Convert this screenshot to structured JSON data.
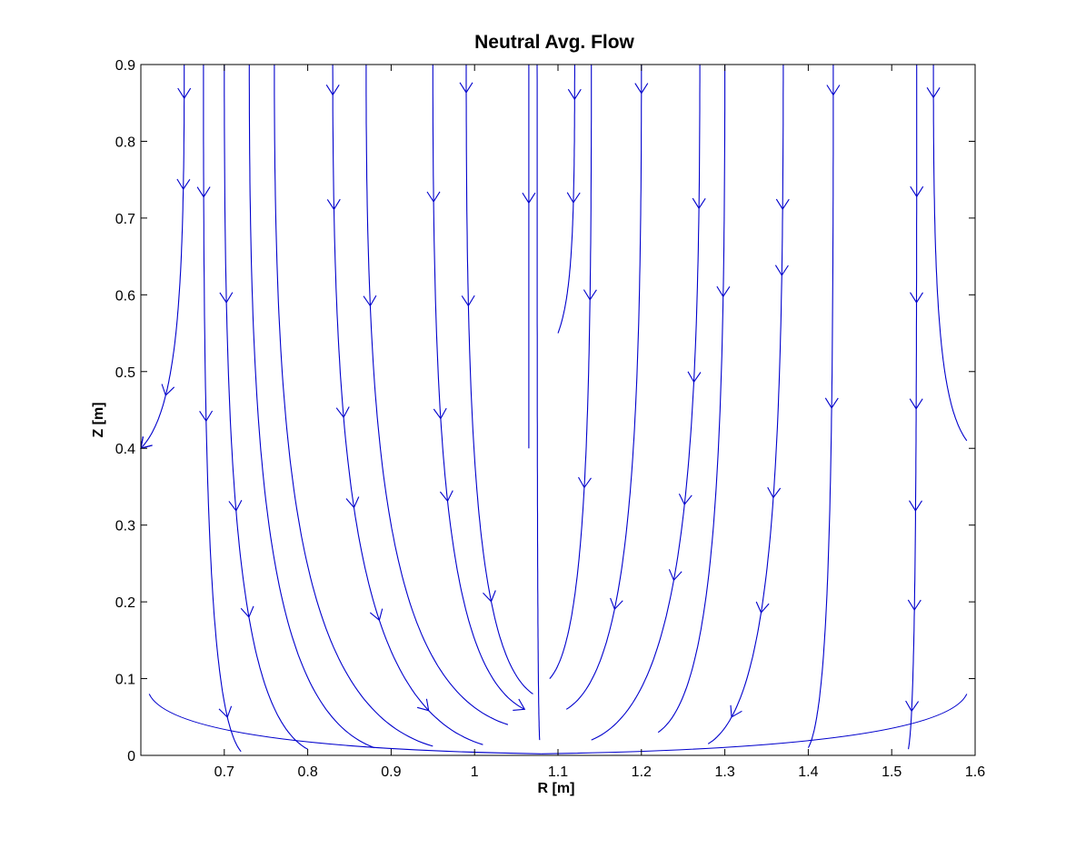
{
  "chart_data": {
    "type": "streamline",
    "title": "Neutral Avg. Flow",
    "xlabel": "R [m]",
    "ylabel": "Z [m]",
    "xlim": [
      0.6,
      1.6
    ],
    "ylim": [
      0,
      0.9
    ],
    "xticks": [
      0.7,
      0.8,
      0.9,
      1,
      1.1,
      1.2,
      1.3,
      1.4,
      1.5,
      1.6
    ],
    "xtick_labels": [
      "0.7",
      "0.8",
      "0.9",
      "1",
      "1.1",
      "1.2",
      "1.3",
      "1.4",
      "1.5",
      "1.6"
    ],
    "yticks": [
      0,
      0.1,
      0.2,
      0.3,
      0.4,
      0.5,
      0.6,
      0.7,
      0.8,
      0.9
    ],
    "ytick_labels": [
      "0",
      "0.1",
      "0.2",
      "0.3",
      "0.4",
      "0.5",
      "0.6",
      "0.7",
      "0.8",
      "0.9"
    ],
    "grid": false,
    "line_color": "#0000cc",
    "stagnation_point": [
      1.08,
      0.0
    ],
    "streamlines": [
      {
        "x0": 0.652,
        "arrow_z": [
          0.855,
          0.74,
          0.47,
          0.31,
          0.18,
          0.06
        ],
        "end": [
          0.6,
          0.4
        ]
      },
      {
        "x0": 0.675,
        "arrow_z": [
          0.72,
          0.44,
          0.05
        ],
        "end": [
          0.72,
          0.005
        ]
      },
      {
        "x0": 0.7,
        "arrow_z": [
          0.59,
          0.32,
          0.18
        ],
        "end": [
          0.8,
          0.008
        ]
      },
      {
        "x0": 0.73,
        "arrow_z": [],
        "end": [
          0.88,
          0.01
        ]
      },
      {
        "x0": 0.76,
        "arrow_z": [],
        "end": [
          0.95,
          0.012
        ]
      },
      {
        "x0": 0.83,
        "arrow_z": [
          0.855,
          0.72,
          0.44,
          0.32,
          0.18,
          0.06
        ],
        "end": [
          1.01,
          0.014
        ]
      },
      {
        "x0": 0.87,
        "arrow_z": [
          0.59
        ],
        "end": [
          1.04,
          0.04
        ]
      },
      {
        "x0": 0.95,
        "arrow_z": [
          0.72,
          0.44,
          0.33,
          0.05
        ],
        "end": [
          1.06,
          0.06
        ]
      },
      {
        "x0": 0.99,
        "arrow_z": [
          0.855,
          0.59,
          0.2
        ],
        "end": [
          1.07,
          0.08
        ]
      },
      {
        "x0": 1.065,
        "arrow_z": [
          0.72
        ],
        "end": [
          1.065,
          0.4
        ]
      },
      {
        "x0": 1.075,
        "arrow_z": [],
        "end": [
          1.078,
          0.02
        ]
      },
      {
        "x0": 1.12,
        "arrow_z": [
          0.855,
          0.72
        ],
        "end": [
          1.1,
          0.55
        ]
      },
      {
        "x0": 1.14,
        "arrow_z": [
          0.59,
          0.35
        ],
        "end": [
          1.09,
          0.1
        ]
      },
      {
        "x0": 1.2,
        "arrow_z": [
          0.855,
          0.19
        ],
        "end": [
          1.11,
          0.06
        ]
      },
      {
        "x0": 1.27,
        "arrow_z": [
          0.72,
          0.48,
          0.33,
          0.23
        ],
        "end": [
          1.14,
          0.02
        ]
      },
      {
        "x0": 1.3,
        "arrow_z": [
          0.59
        ],
        "end": [
          1.22,
          0.03
        ]
      },
      {
        "x0": 1.37,
        "arrow_z": [
          0.72,
          0.62,
          0.33,
          0.19,
          0.05
        ],
        "end": [
          1.28,
          0.015
        ]
      },
      {
        "x0": 1.43,
        "arrow_z": [
          0.855,
          0.45
        ],
        "end": [
          1.4,
          0.01
        ]
      },
      {
        "x0": 1.53,
        "arrow_z": [
          0.59,
          0.72,
          0.45,
          0.32,
          0.19,
          0.06
        ],
        "end": [
          1.52,
          0.008
        ]
      },
      {
        "x0": 1.55,
        "arrow_z": [
          0.855
        ],
        "end": [
          1.59,
          0.41
        ]
      }
    ]
  }
}
